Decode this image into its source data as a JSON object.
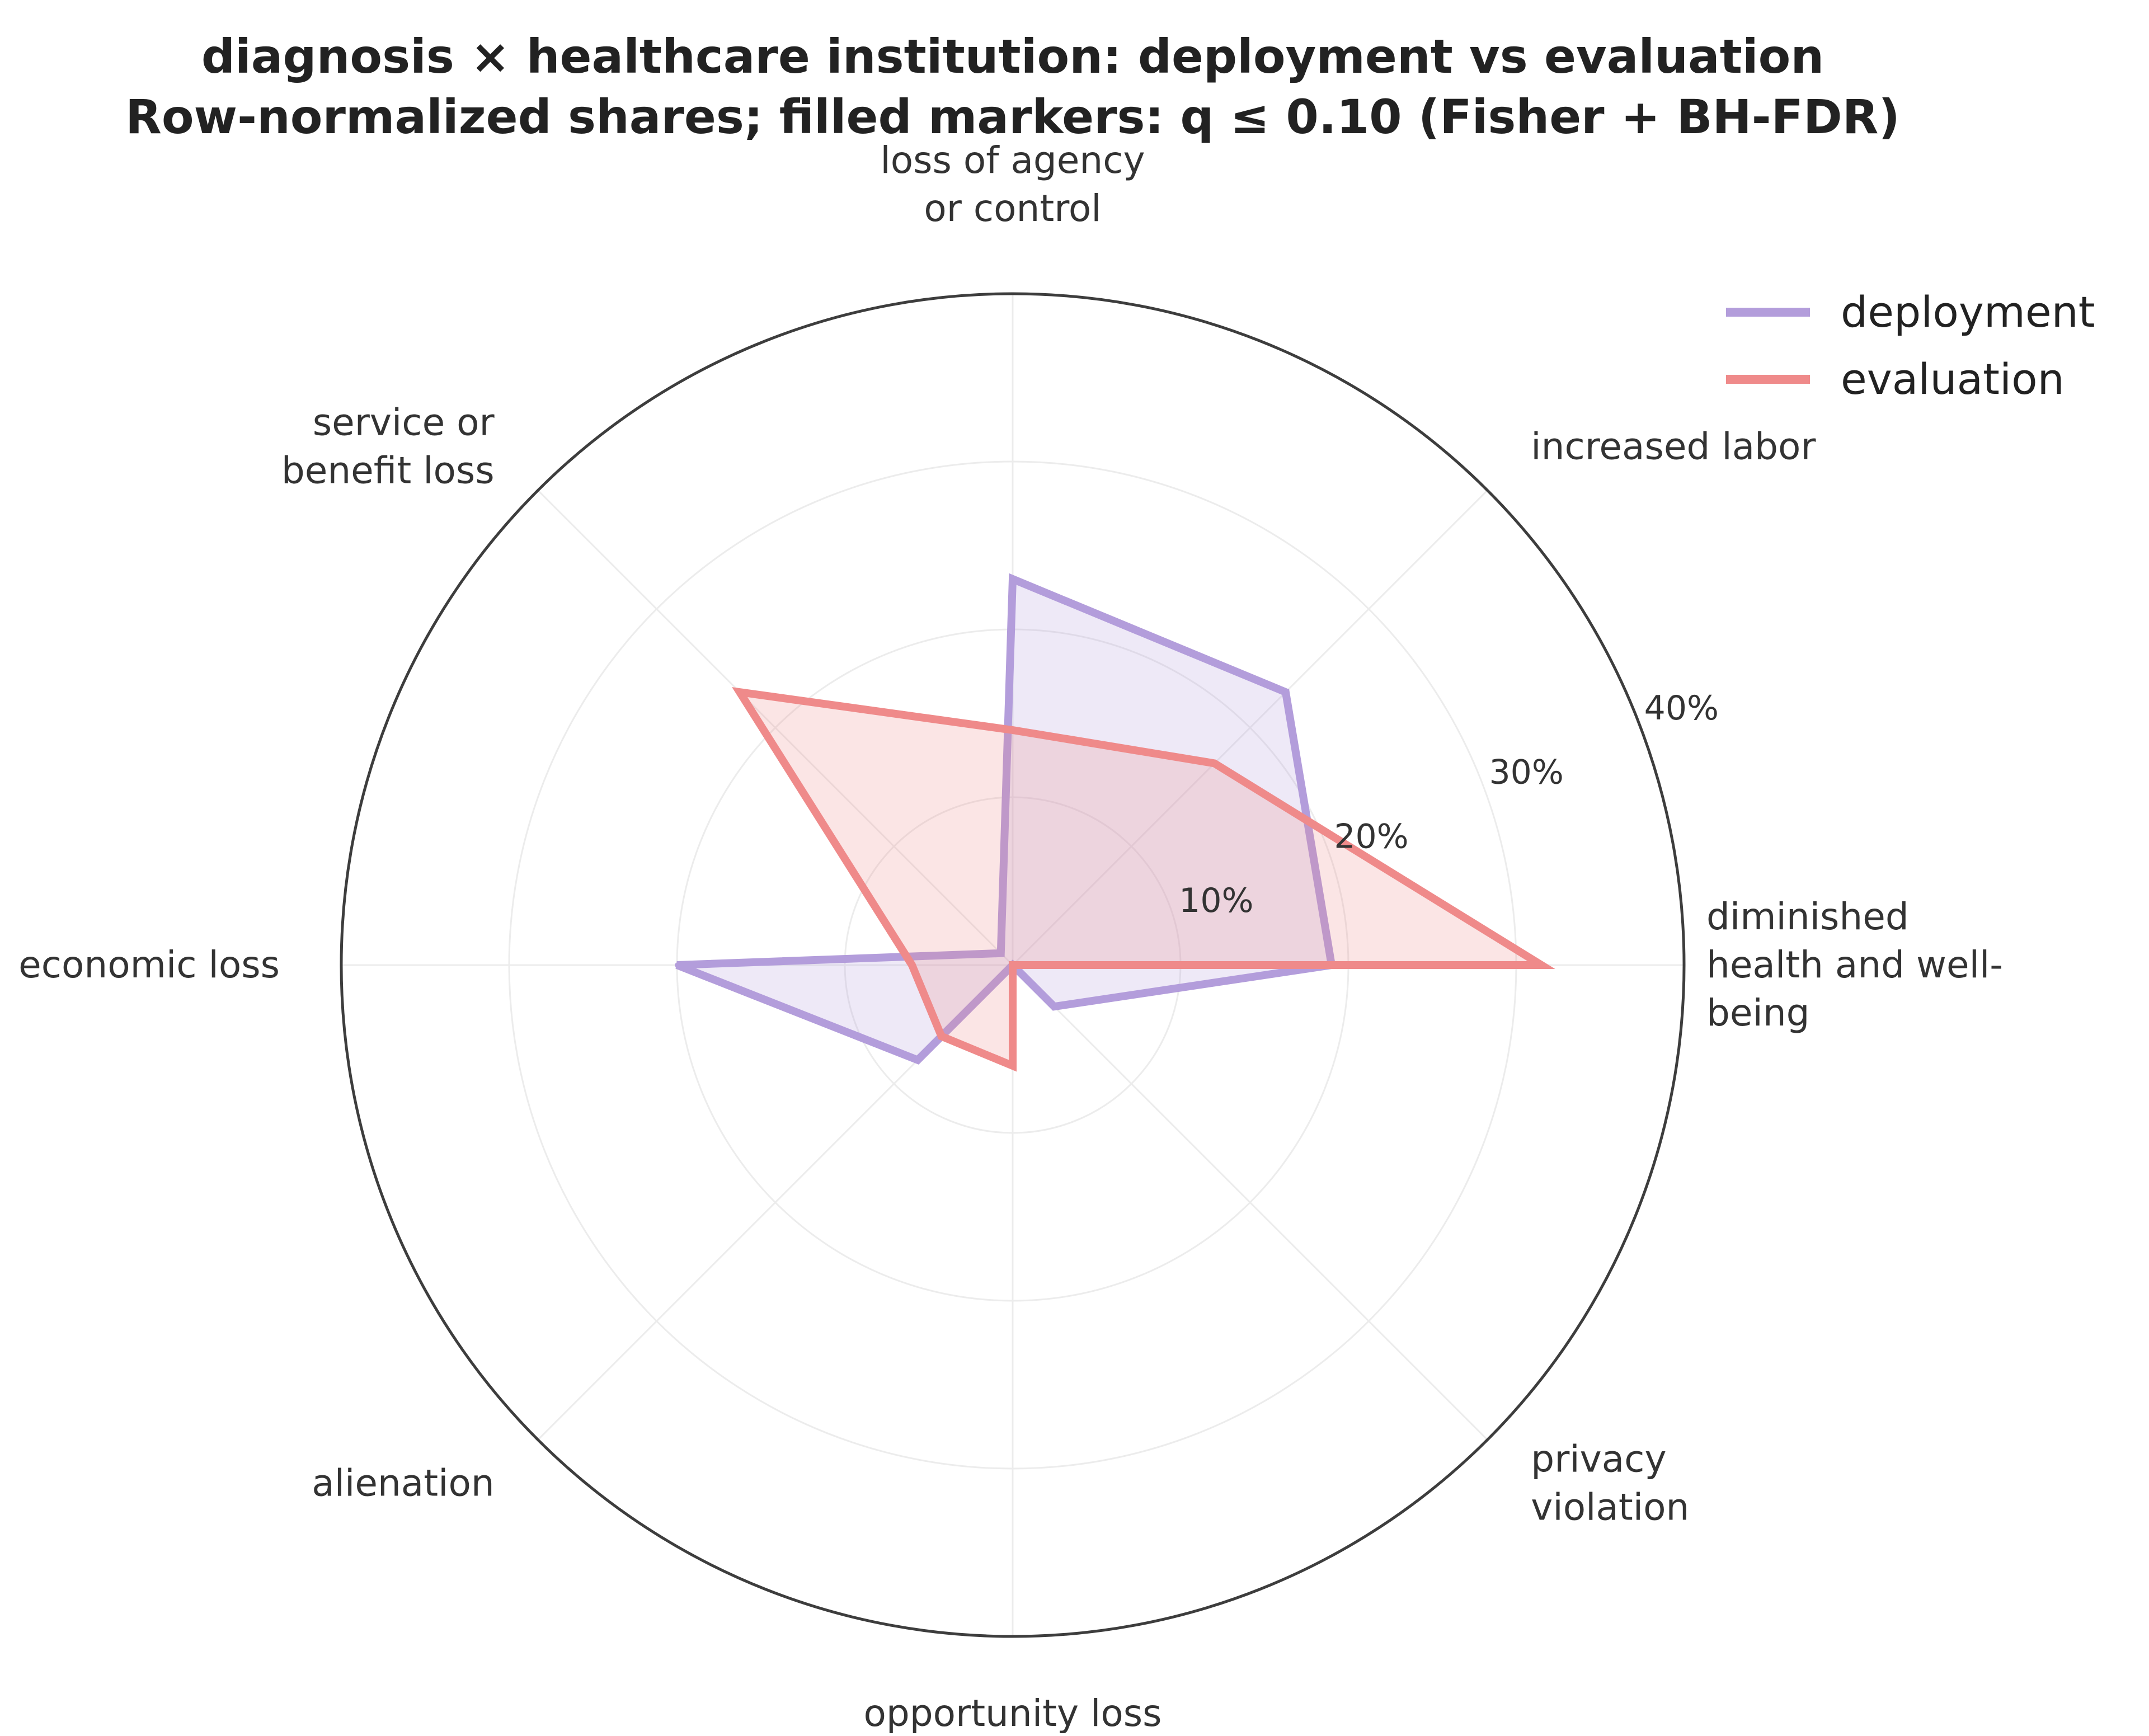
{
  "chart_data": {
    "type": "radar",
    "title": "diagnosis × healthcare institution: deployment vs evaluation",
    "subtitle": "Row-normalized shares; filled markers: q ≤ 0.10 (Fisher + BH-FDR)",
    "categories": [
      [
        "diminished",
        "health and well-",
        "being"
      ],
      [
        "increased labor"
      ],
      [
        "loss of agency",
        "or control"
      ],
      [
        "service or",
        "benefit loss"
      ],
      [
        "economic loss"
      ],
      [
        "alienation"
      ],
      [
        "opportunity loss"
      ],
      [
        "privacy",
        "violation"
      ]
    ],
    "radial_ticks": [
      "10%",
      "20%",
      "30%",
      "40%"
    ],
    "radial_tick_values": [
      10,
      20,
      30,
      40
    ],
    "rlim": [
      0,
      40
    ],
    "grid": true,
    "legend_position": "top-right",
    "series": [
      {
        "name": "deployment",
        "color": "#b39ddb",
        "values": [
          19.0,
          23.0,
          23.0,
          1.0,
          20.0,
          8.0,
          0.0,
          3.5
        ]
      },
      {
        "name": "evaluation",
        "color": "#ef8a8a",
        "values": [
          31.5,
          17.0,
          14.0,
          23.0,
          6.0,
          6.0,
          6.0,
          0.0
        ]
      }
    ]
  }
}
